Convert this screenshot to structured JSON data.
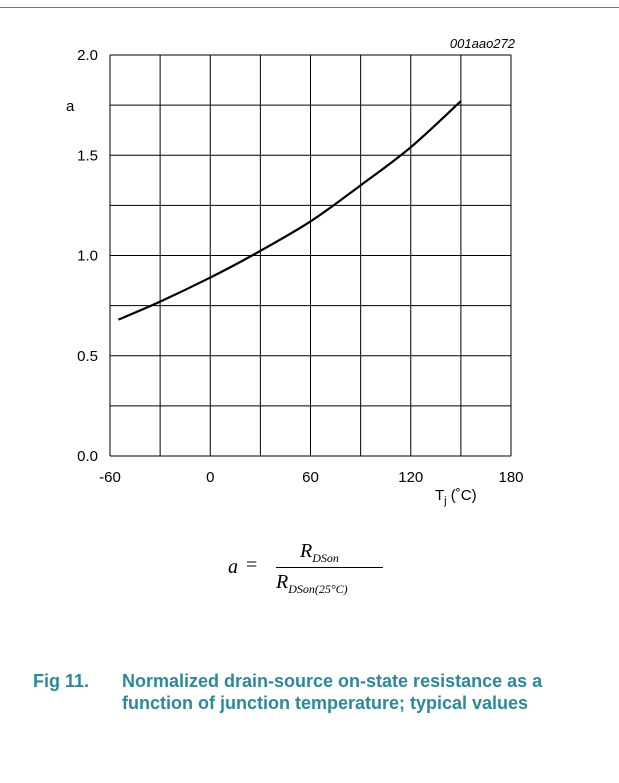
{
  "doc_id": "001aao272",
  "chart_data": {
    "type": "line",
    "ylabel": "a",
    "xlabel": "Tj (°C)",
    "xlabel_main": "T",
    "xlabel_sub": "j",
    "xlabel_unit": " (˚C)",
    "xlim": [
      -60,
      180
    ],
    "ylim": [
      0.0,
      2.0
    ],
    "xticks": [
      -60,
      0,
      60,
      120,
      180
    ],
    "xtick_labels": [
      "-60",
      "0",
      "60",
      "120",
      "180"
    ],
    "yticks": [
      0.0,
      0.5,
      1.0,
      1.5,
      2.0
    ],
    "ytick_labels": [
      "0.0",
      "0.5",
      "1.0",
      "1.5",
      "2.0"
    ],
    "grid": true,
    "series": [
      {
        "x": [
          -55,
          -30,
          0,
          25,
          60,
          90,
          120,
          150
        ],
        "y": [
          0.68,
          0.77,
          0.89,
          1.0,
          1.17,
          1.35,
          1.54,
          1.77
        ]
      }
    ]
  },
  "formula": {
    "lhs": "a",
    "eq": "=",
    "numerator": "R",
    "numerator_sub": "DSon",
    "denominator": "R",
    "denominator_sub": "DSon(25°C)"
  },
  "caption": {
    "figure_number": "Fig 11.",
    "text": "Normalized drain-source on-state resistance as a function of junction temperature; typical values"
  },
  "colors": {
    "rule": "#3a8f9e",
    "caption": "#2a8a9c",
    "grid": "#000000",
    "curve": "#000000"
  }
}
